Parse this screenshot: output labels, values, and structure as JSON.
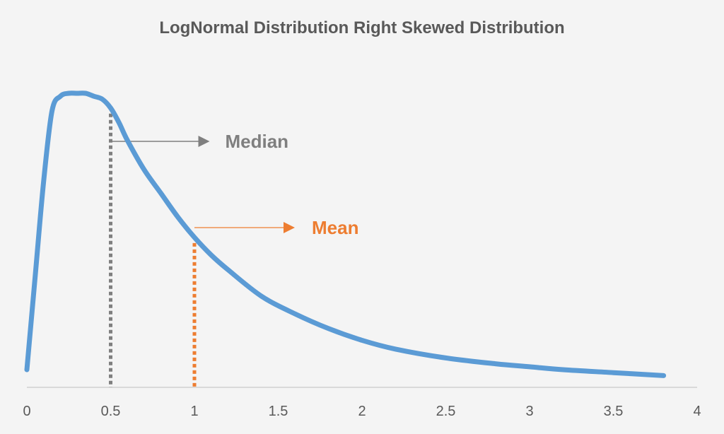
{
  "chart_data": {
    "type": "line",
    "title": "LogNormal Distribution Right Skewed Distribution",
    "xlabel": "",
    "ylabel": "",
    "xlim": [
      0,
      4
    ],
    "x_ticks": [
      "0",
      "0.5",
      "1",
      "1.5",
      "2",
      "2.5",
      "3",
      "3.5",
      "4"
    ],
    "grid": false,
    "legend": "none",
    "series": [
      {
        "color": "#5b9bd5",
        "x": [
          0,
          0.05,
          0.1,
          0.15,
          0.2,
          0.25,
          0.3,
          0.35,
          0.4,
          0.45,
          0.5,
          0.55,
          0.6,
          0.7,
          0.8,
          0.9,
          1.0,
          1.1,
          1.2,
          1.4,
          1.6,
          1.8,
          2.0,
          2.2,
          2.5,
          2.8,
          3.0,
          3.2,
          3.5,
          3.8
        ],
        "y": [
          0.06,
          0.38,
          0.7,
          0.94,
          0.99,
          1.0,
          1.0,
          1.0,
          0.99,
          0.98,
          0.95,
          0.9,
          0.84,
          0.74,
          0.66,
          0.58,
          0.51,
          0.45,
          0.4,
          0.31,
          0.25,
          0.2,
          0.16,
          0.13,
          0.1,
          0.08,
          0.07,
          0.06,
          0.05,
          0.04
        ]
      }
    ],
    "annotations": [
      {
        "label": "Median",
        "x": 0.5,
        "color": "#7f7f7f"
      },
      {
        "label": "Mean",
        "x": 1.0,
        "color": "#ed7d31"
      }
    ]
  }
}
